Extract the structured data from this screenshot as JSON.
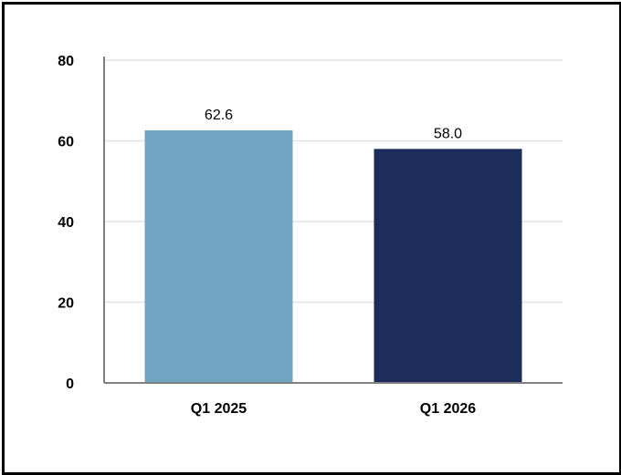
{
  "chart_data": {
    "type": "bar",
    "categories": [
      "Q1 2025",
      "Q1 2026"
    ],
    "values": [
      62.6,
      58.0
    ],
    "value_labels": [
      "62.6",
      "58.0"
    ],
    "bar_colors": [
      "#72a4c4",
      "#1c2d5c"
    ],
    "title": "",
    "xlabel": "",
    "ylabel": "",
    "ylim": [
      0,
      80
    ],
    "yticks": [
      0,
      20,
      40,
      60,
      80
    ],
    "ytick_labels": [
      "0",
      "20",
      "40",
      "60",
      "80"
    ],
    "grid": true,
    "legend": "none"
  },
  "colors": {
    "grid": "#e3e3e3",
    "axis": "#808080",
    "border": "#000000"
  }
}
